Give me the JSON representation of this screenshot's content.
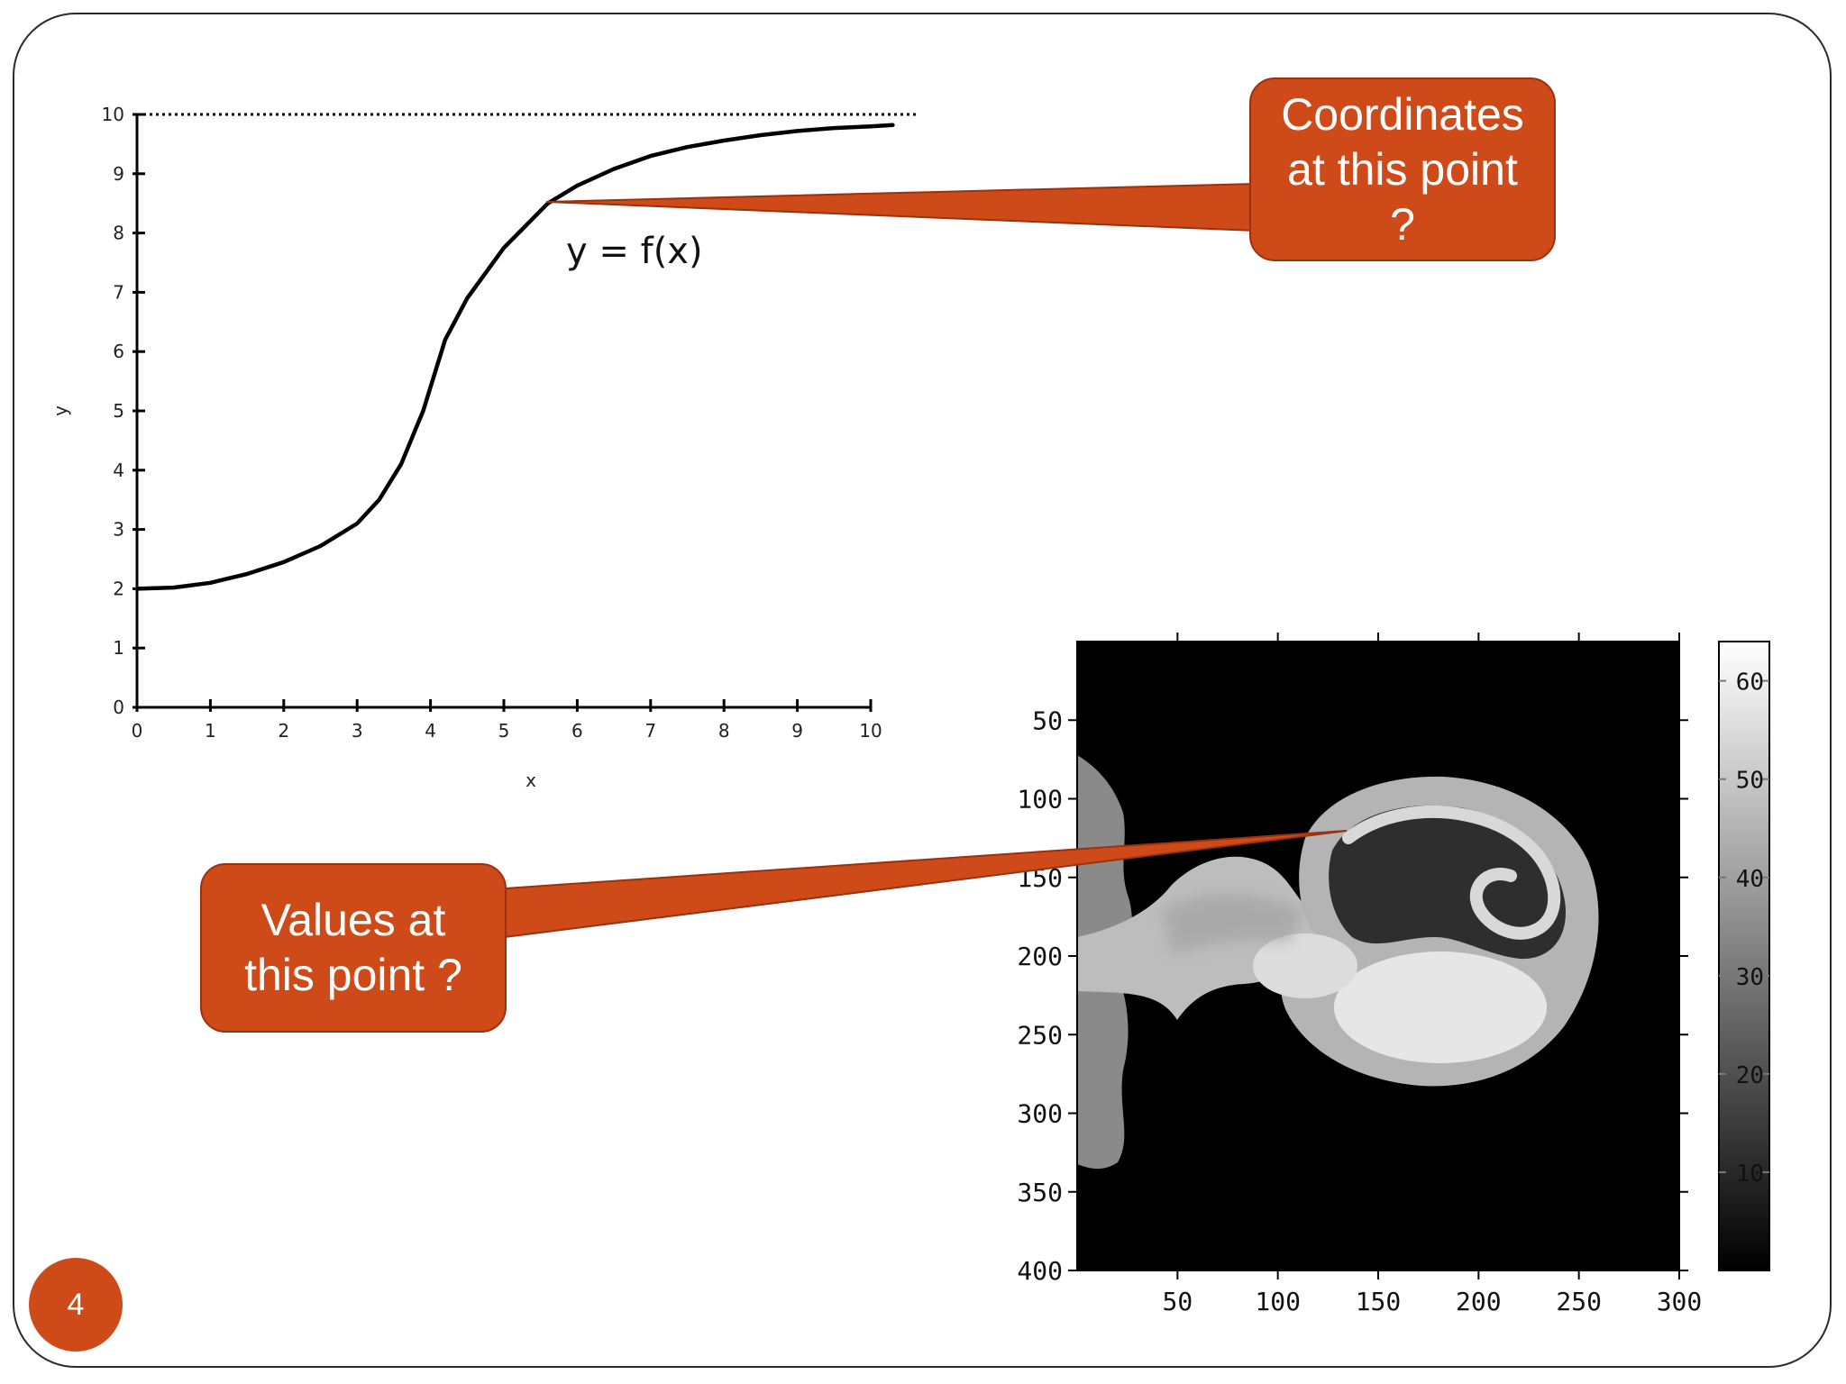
{
  "slide": {
    "page_number": "4"
  },
  "callouts": {
    "coordinates": {
      "lines": [
        "Coordinates",
        "at this point",
        "?"
      ]
    },
    "values": {
      "lines": [
        "Values at",
        "this point ?"
      ]
    }
  },
  "colors": {
    "callout": "#cf4a19",
    "callout_border": "#9a3210",
    "frame": "#2a2a2a"
  },
  "chart_data": [
    {
      "type": "line",
      "title": "",
      "xlabel": "x",
      "ylabel": "y",
      "xlim": [
        0,
        10
      ],
      "ylim": [
        0,
        10
      ],
      "xticks": [
        0,
        1,
        2,
        3,
        4,
        5,
        6,
        7,
        8,
        9,
        10
      ],
      "yticks": [
        0,
        1,
        2,
        3,
        4,
        5,
        6,
        7,
        8,
        9,
        10
      ],
      "grid": false,
      "asymptote": {
        "y": 10,
        "style": "dotted"
      },
      "series": [
        {
          "label": "y = f(x)",
          "x": [
            0,
            0.5,
            1,
            1.5,
            2,
            2.5,
            3,
            3.3,
            3.6,
            3.8,
            3.9,
            4,
            4.2,
            4.5,
            5,
            5.6,
            6,
            6.5,
            7,
            7.5,
            8,
            8.5,
            9,
            9.5,
            10,
            10.3
          ],
          "y": [
            2,
            2.02,
            2.1,
            2.25,
            2.45,
            2.72,
            3.1,
            3.5,
            4.1,
            4.7,
            5.0,
            5.4,
            6.2,
            6.9,
            7.75,
            8.5,
            8.8,
            9.08,
            9.3,
            9.45,
            9.56,
            9.65,
            9.72,
            9.77,
            9.8,
            9.82
          ]
        }
      ]
    },
    {
      "type": "heatmap",
      "title": "",
      "xlim": [
        0,
        300
      ],
      "ylim": [
        0,
        400
      ],
      "xticks": [
        50,
        100,
        150,
        200,
        250,
        300
      ],
      "yticks": [
        50,
        100,
        150,
        200,
        250,
        300,
        350,
        400
      ],
      "y_inverted": true,
      "colormap": "gray",
      "colorbar": {
        "range": [
          0,
          64
        ],
        "ticks": [
          10,
          20,
          30,
          40,
          50,
          60
        ]
      }
    }
  ]
}
